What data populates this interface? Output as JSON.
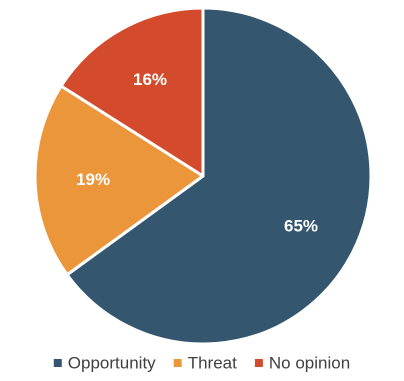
{
  "chart_data": {
    "type": "pie",
    "title": "",
    "categories": [
      "Opportunity",
      "Threat",
      "No opinion"
    ],
    "values": [
      65,
      19,
      16
    ],
    "data_labels": [
      "65%",
      "19%",
      "16%"
    ],
    "colors": [
      "#34566f",
      "#ec963c",
      "#d34b2c"
    ],
    "legend": {
      "placement": "bottom",
      "entries": [
        "Opportunity",
        "Threat",
        "No opinion"
      ]
    }
  }
}
